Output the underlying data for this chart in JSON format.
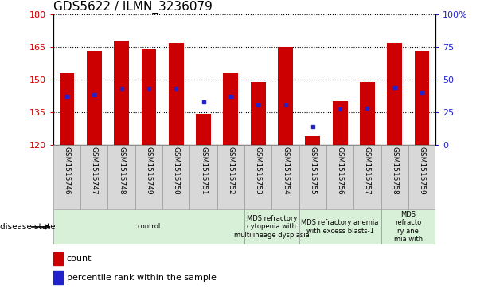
{
  "title": "GDS5622 / ILMN_3236079",
  "samples": [
    "GSM1515746",
    "GSM1515747",
    "GSM1515748",
    "GSM1515749",
    "GSM1515750",
    "GSM1515751",
    "GSM1515752",
    "GSM1515753",
    "GSM1515754",
    "GSM1515755",
    "GSM1515756",
    "GSM1515757",
    "GSM1515758",
    "GSM1515759"
  ],
  "counts": [
    153,
    163,
    168,
    164,
    167,
    134,
    153,
    149,
    165,
    124,
    140,
    149,
    167,
    163
  ],
  "percentiles": [
    37,
    38,
    43,
    43,
    43,
    33,
    37,
    30,
    30,
    14,
    27,
    28,
    44,
    40
  ],
  "ymin": 120,
  "ymax": 180,
  "yticks_left": [
    120,
    135,
    150,
    165,
    180
  ],
  "yticks_right": [
    0,
    25,
    50,
    75,
    100
  ],
  "bar_color": "#cc0000",
  "marker_color": "#2222cc",
  "bar_width": 0.55,
  "groups": [
    {
      "label": "control",
      "start": 0,
      "end": 7,
      "color": "#d8f0d8"
    },
    {
      "label": "MDS refractory\ncytopenia with\nmultilineage dysplasia",
      "start": 7,
      "end": 9,
      "color": "#d8f0d8"
    },
    {
      "label": "MDS refractory anemia\nwith excess blasts-1",
      "start": 9,
      "end": 12,
      "color": "#d8f0d8"
    },
    {
      "label": "MDS\nrefracto\nry ane\nmia with",
      "start": 12,
      "end": 14,
      "color": "#d8f0d8"
    }
  ],
  "tick_color_left": "#cc0000",
  "tick_color_right": "#2222cc",
  "title_fontsize": 11,
  "legend_count": "count",
  "legend_pct": "percentile rank within the sample",
  "disease_state_text": "disease state"
}
